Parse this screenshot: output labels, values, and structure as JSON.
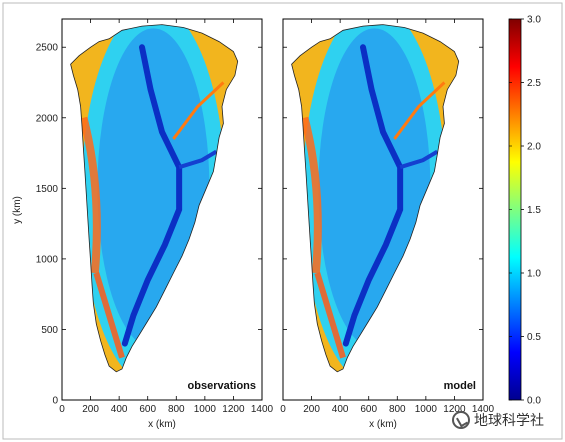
{
  "figure": {
    "y_axis_label": "y (km)",
    "x_axis_label": "x (km)",
    "y_ticks": [
      "0",
      "500",
      "1000",
      "1500",
      "2000",
      "2500"
    ],
    "x_ticks": [
      "0",
      "200",
      "400",
      "600",
      "800",
      "1000",
      "1200",
      "1400"
    ],
    "x_ticks_right": [
      "0",
      "200",
      "400",
      "600",
      "800",
      "1000",
      "1200",
      "1400"
    ],
    "panels": [
      {
        "label": "observations"
      },
      {
        "label": "model"
      }
    ],
    "colorbar": {
      "ticks": [
        "0.0",
        "0.5",
        "1.0",
        "1.5",
        "2.0",
        "2.5",
        "3.0"
      ],
      "min": 0.0,
      "max": 3.0
    },
    "watermark": "地球科学社"
  }
}
